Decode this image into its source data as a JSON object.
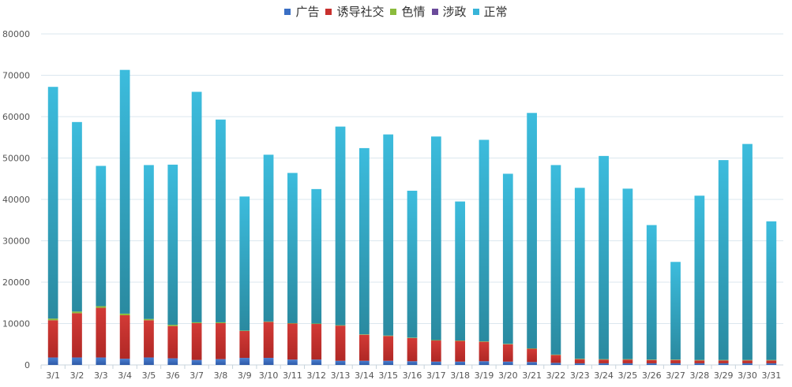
{
  "chart_data": {
    "type": "bar",
    "stacked": true,
    "categories": [
      "3/1",
      "3/2",
      "3/3",
      "3/4",
      "3/5",
      "3/6",
      "3/7",
      "3/8",
      "3/9",
      "3/10",
      "3/11",
      "3/12",
      "3/13",
      "3/14",
      "3/15",
      "3/16",
      "3/17",
      "3/18",
      "3/19",
      "3/20",
      "3/21",
      "3/22",
      "3/23",
      "3/24",
      "3/25",
      "3/26",
      "3/27",
      "3/28",
      "3/29",
      "3/30",
      "3/31"
    ],
    "ylim": [
      0,
      80000
    ],
    "yticks": [
      0,
      10000,
      20000,
      30000,
      40000,
      50000,
      60000,
      70000,
      80000
    ],
    "grid": true,
    "legend_position": "top-center",
    "series": [
      {
        "name": "广告",
        "color": "#3a6fc4",
        "values": [
          1800,
          1800,
          1800,
          1500,
          1800,
          1600,
          1200,
          1400,
          1700,
          1700,
          1300,
          1300,
          1000,
          1000,
          1000,
          900,
          800,
          800,
          900,
          800,
          700,
          500,
          400,
          400,
          400,
          400,
          400,
          400,
          400,
          400,
          400
        ]
      },
      {
        "name": "诱导社交",
        "color": "#c8302e",
        "values": [
          9000,
          10700,
          12000,
          10500,
          9000,
          7800,
          8900,
          8700,
          6500,
          8700,
          8700,
          8600,
          8500,
          6300,
          6000,
          5600,
          5100,
          5000,
          4700,
          4200,
          3200,
          1900,
          1000,
          900,
          900,
          800,
          800,
          700,
          700,
          700,
          700
        ]
      },
      {
        "name": "色情",
        "color": "#8bbb3c",
        "values": [
          400,
          400,
          400,
          400,
          300,
          300,
          200,
          200,
          100,
          100,
          100,
          100,
          100,
          100,
          100,
          100,
          100,
          100,
          100,
          100,
          100,
          100,
          100,
          100,
          100,
          100,
          100,
          100,
          100,
          100,
          100
        ]
      },
      {
        "name": "涉政",
        "color": "#6a4a9a",
        "values": [
          0,
          0,
          0,
          0,
          0,
          0,
          0,
          0,
          0,
          0,
          0,
          0,
          0,
          0,
          0,
          0,
          0,
          0,
          0,
          0,
          0,
          0,
          0,
          0,
          0,
          0,
          0,
          0,
          0,
          0,
          0
        ]
      },
      {
        "name": "正常",
        "color": "#38b4d8",
        "values": [
          56000,
          45800,
          33900,
          58900,
          37200,
          38700,
          55700,
          49000,
          32400,
          40300,
          36300,
          32500,
          48000,
          45000,
          48600,
          35500,
          49200,
          33600,
          48700,
          41100,
          56900,
          45800,
          41300,
          49100,
          41200,
          32500,
          23600,
          39700,
          48300,
          52200,
          33500
        ]
      }
    ]
  }
}
